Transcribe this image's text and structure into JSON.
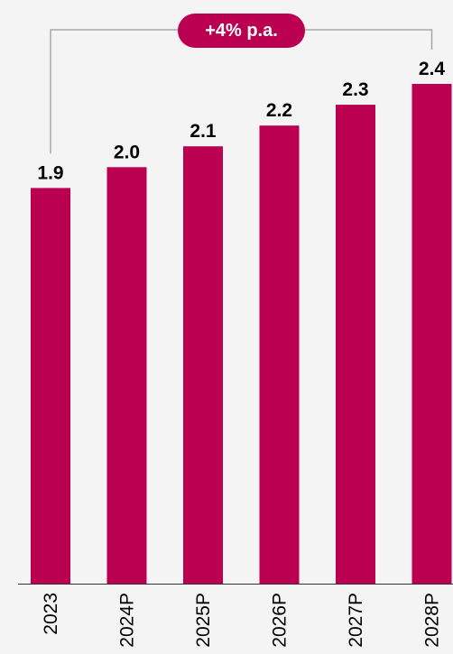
{
  "chart_data": {
    "type": "bar",
    "title": "",
    "xlabel": "",
    "ylabel": "",
    "categories": [
      "2023",
      "2024P",
      "2025P",
      "2026P",
      "2027P",
      "2028P"
    ],
    "values": [
      1.9,
      2.0,
      2.1,
      2.2,
      2.3,
      2.4
    ],
    "value_labels": [
      "1.9",
      "2.0",
      "2.1",
      "2.2",
      "2.3",
      "2.4"
    ],
    "ylim": [
      0,
      2.4
    ],
    "bar_color": "#bb0052",
    "grid": false,
    "annotation": {
      "label": "+4% p.a.",
      "from_category": "2023",
      "to_category": "2028P"
    }
  }
}
